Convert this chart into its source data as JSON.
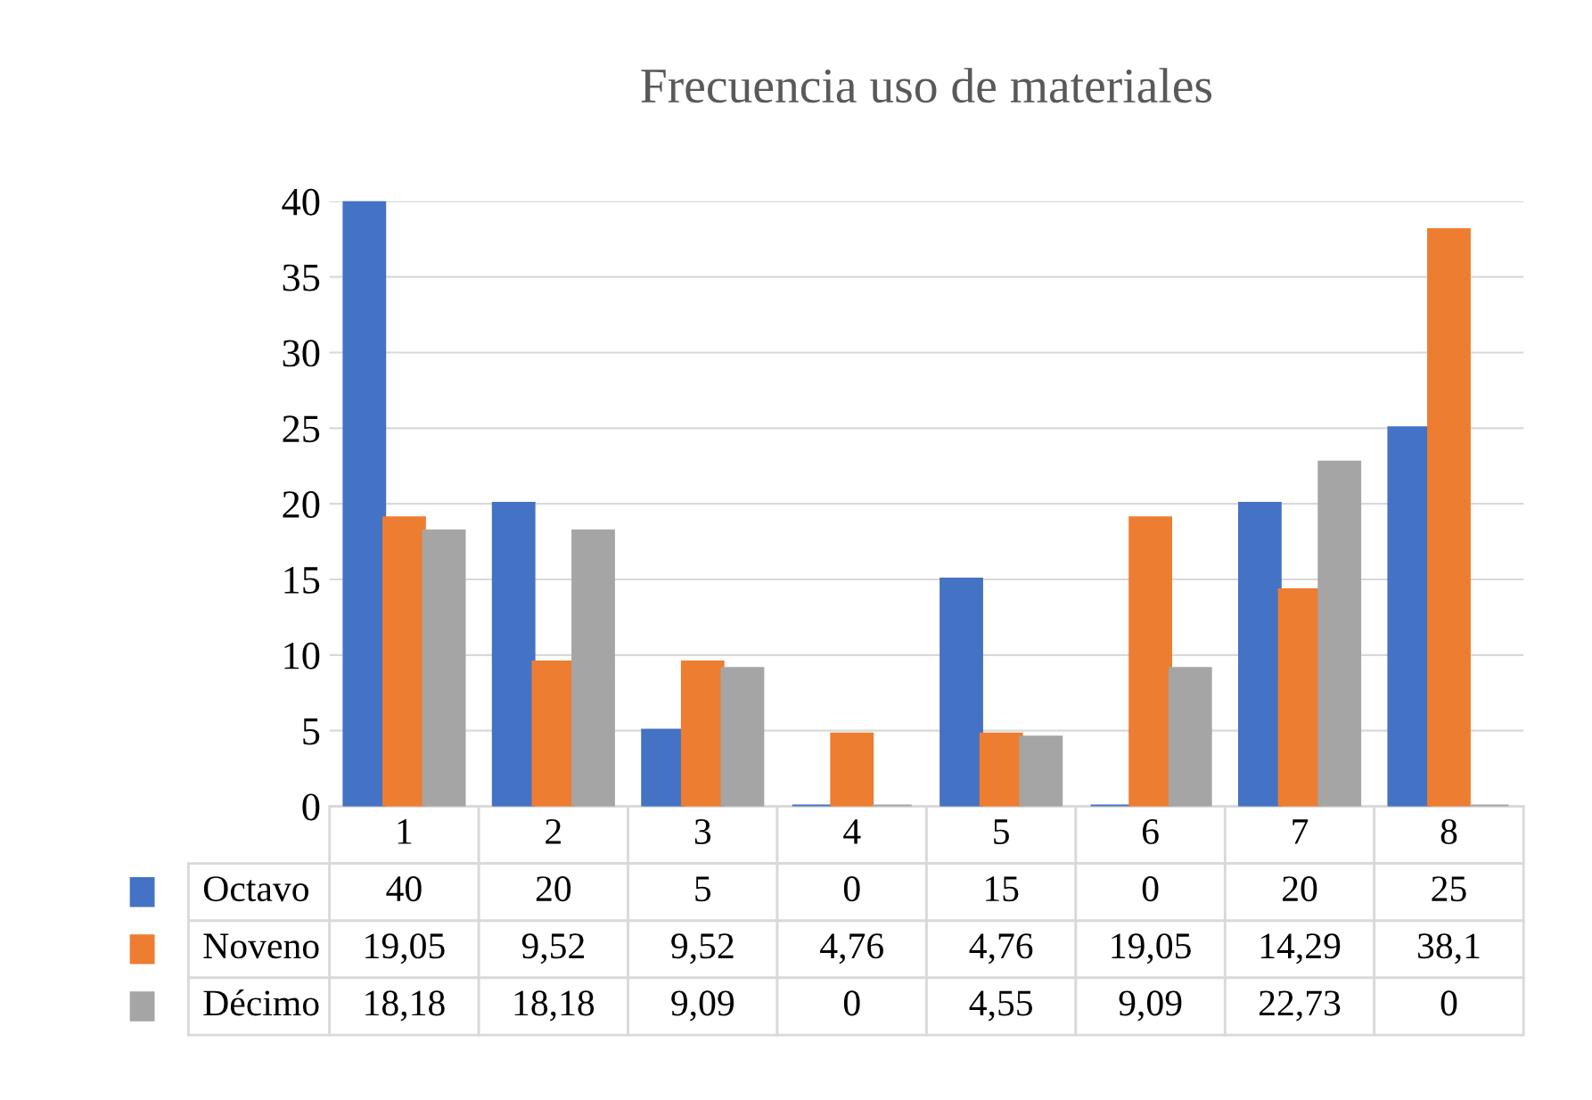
{
  "chart_data": {
    "type": "bar",
    "title": "Frecuencia uso de materiales",
    "categories": [
      "1",
      "2",
      "3",
      "4",
      "5",
      "6",
      "7",
      "8"
    ],
    "ylim": [
      0,
      40
    ],
    "yticks": [
      0,
      5,
      10,
      15,
      20,
      25,
      30,
      35,
      40
    ],
    "grid": "y",
    "legend": "bottom",
    "series": [
      {
        "name": "Octavo",
        "color": "#4472c4",
        "values": [
          40,
          20,
          5,
          0,
          15,
          0,
          20,
          25
        ],
        "value_labels": [
          "40",
          "20",
          "5",
          "0",
          "15",
          "0",
          "20",
          "25"
        ]
      },
      {
        "name": "Noveno",
        "color": "#ed7d31",
        "values": [
          19.05,
          9.52,
          9.52,
          4.76,
          4.76,
          19.05,
          14.29,
          38.1
        ],
        "value_labels": [
          "19,05",
          "9,52",
          "9,52",
          "4,76",
          "4,76",
          "19,05",
          "14,29",
          "38,1"
        ]
      },
      {
        "name": "Décimo",
        "color": "#a5a5a5",
        "values": [
          18.18,
          18.18,
          9.09,
          0,
          4.55,
          9.09,
          22.73,
          0
        ],
        "value_labels": [
          "18,18",
          "18,18",
          "9,09",
          "0",
          "4,55",
          "9,09",
          "22,73",
          "0"
        ]
      }
    ]
  }
}
